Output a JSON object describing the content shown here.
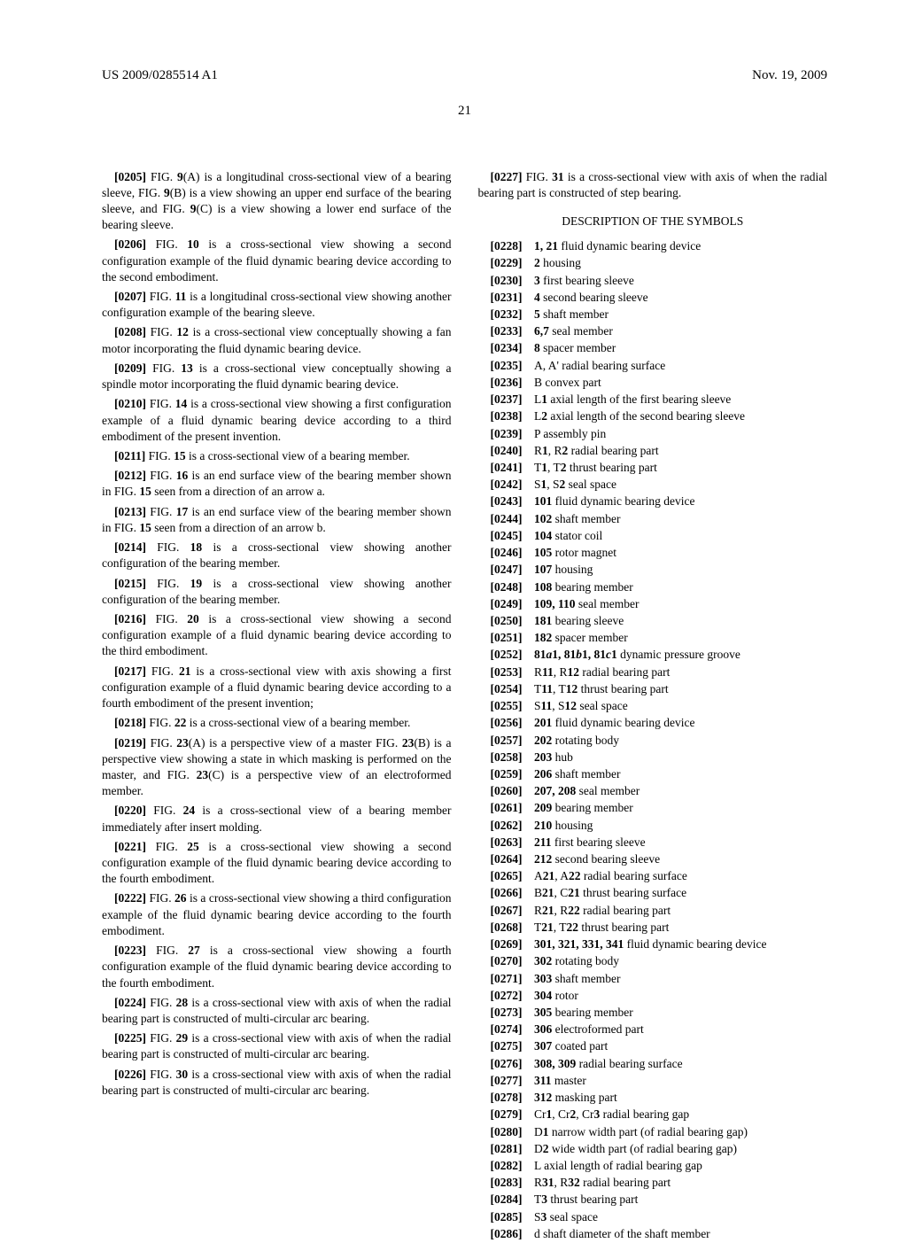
{
  "header": {
    "left": "US 2009/0285514 A1",
    "right": "Nov. 19, 2009",
    "page": "21"
  },
  "left_paras": [
    {
      "t": "[0205]   FIG. 9(A) is a longitudinal cross-sectional view of a bearing sleeve, FIG. 9(B) is a view showing an upper end surface of the bearing sleeve, and FIG. 9(C) is a view showing a lower end surface of the bearing sleeve."
    },
    {
      "t": "[0206]   FIG. 10 is a cross-sectional view showing a second configuration example of the fluid dynamic bearing device according to the second embodiment."
    },
    {
      "t": "[0207]   FIG. 11 is a longitudinal cross-sectional view showing another configuration example of the bearing sleeve."
    },
    {
      "t": "[0208]   FIG. 12 is a cross-sectional view conceptually showing a fan motor incorporating the fluid dynamic bearing device."
    },
    {
      "t": "[0209]   FIG. 13 is a cross-sectional view conceptually showing a spindle motor incorporating the fluid dynamic bearing device."
    },
    {
      "t": "[0210]   FIG. 14 is a cross-sectional view showing a first configuration example of a fluid dynamic bearing device according to a third embodiment of the present invention."
    },
    {
      "t": "[0211]   FIG. 15 is a cross-sectional view of a bearing member."
    },
    {
      "t": "[0212]   FIG. 16 is an end surface view of the bearing member shown in FIG. 15 seen from a direction of an arrow a."
    },
    {
      "t": "[0213]   FIG. 17 is an end surface view of the bearing member shown in FIG. 15 seen from a direction of an arrow b."
    },
    {
      "t": "[0214]   FIG. 18 is a cross-sectional view showing another configuration of the bearing member."
    },
    {
      "t": "[0215]   FIG. 19 is a cross-sectional view showing another configuration of the bearing member."
    },
    {
      "t": "[0216]   FIG. 20 is a cross-sectional view showing a second configuration example of a fluid dynamic bearing device according to the third embodiment."
    },
    {
      "t": "[0217]   FIG. 21 is a cross-sectional view with axis showing a first configuration example of a fluid dynamic bearing device according to a fourth embodiment of the present invention;"
    },
    {
      "t": "[0218]   FIG. 22 is a cross-sectional view of a bearing member."
    },
    {
      "t": "[0219]   FIG. 23(A) is a perspective view of a master FIG. 23(B) is a perspective view showing a state in which masking is performed on the master, and FIG. 23(C) is a perspective view of an electroformed member."
    },
    {
      "t": "[0220]   FIG. 24 is a cross-sectional view of a bearing member immediately after insert molding."
    },
    {
      "t": "[0221]   FIG. 25 is a cross-sectional view showing a second configuration example of the fluid dynamic bearing device according to the fourth embodiment."
    },
    {
      "t": "[0222]   FIG. 26 is a cross-sectional view showing a third configuration example of the fluid dynamic bearing device according to the fourth embodiment."
    },
    {
      "t": "[0223]   FIG. 27 is a cross-sectional view showing a fourth configuration example of the fluid dynamic bearing device according to the fourth embodiment."
    },
    {
      "t": "[0224]   FIG. 28 is a cross-sectional view with axis of when the radial bearing part is constructed of multi-circular arc bearing."
    },
    {
      "t": "[0225]   FIG. 29 is a cross-sectional view with axis of when the radial bearing part is constructed of multi-circular arc bearing."
    },
    {
      "t": "[0226]   FIG. 30 is a cross-sectional view with axis of when the radial bearing part is constructed of multi-circular arc bearing."
    }
  ],
  "right_intro": {
    "t": "[0227]   FIG. 31 is a cross-sectional view with axis of when the radial bearing part is constructed of step bearing."
  },
  "section_title": "DESCRIPTION OF THE SYMBOLS",
  "symbols": [
    {
      "n": "[0228]",
      "r": "1, 21",
      "d": " fluid dynamic bearing device"
    },
    {
      "n": "[0229]",
      "r": "2",
      "d": " housing"
    },
    {
      "n": "[0230]",
      "r": "3",
      "d": " first bearing sleeve"
    },
    {
      "n": "[0231]",
      "r": "4",
      "d": " second bearing sleeve"
    },
    {
      "n": "[0232]",
      "r": "5",
      "d": " shaft member"
    },
    {
      "n": "[0233]",
      "r": "6,7",
      "d": " seal member"
    },
    {
      "n": "[0234]",
      "r": "8",
      "d": " spacer member"
    },
    {
      "n": "[0235]",
      "r": "",
      "d": "A, A' radial bearing surface"
    },
    {
      "n": "[0236]",
      "r": "",
      "d": "B convex part"
    },
    {
      "n": "[0237]",
      "r": "",
      "d": "L1 axial length of the first bearing sleeve",
      "bold": "1"
    },
    {
      "n": "[0238]",
      "r": "",
      "d": "L2 axial length of the second bearing sleeve",
      "bold": "2"
    },
    {
      "n": "[0239]",
      "r": "",
      "d": "P assembly pin"
    },
    {
      "n": "[0240]",
      "r": "",
      "d": "R1, R2 radial bearing part",
      "bold": "1,2"
    },
    {
      "n": "[0241]",
      "r": "",
      "d": "T1, T2 thrust bearing part",
      "bold": "1,2"
    },
    {
      "n": "[0242]",
      "r": "",
      "d": "S1, S2 seal space",
      "bold": "1,2"
    },
    {
      "n": "[0243]",
      "r": "101",
      "d": " fluid dynamic bearing device"
    },
    {
      "n": "[0244]",
      "r": "102",
      "d": " shaft member"
    },
    {
      "n": "[0245]",
      "r": "104",
      "d": " stator coil"
    },
    {
      "n": "[0246]",
      "r": "105",
      "d": " rotor magnet"
    },
    {
      "n": "[0247]",
      "r": "107",
      "d": " housing"
    },
    {
      "n": "[0248]",
      "r": "108",
      "d": " bearing member"
    },
    {
      "n": "[0249]",
      "r": "109, 110",
      "d": " seal member"
    },
    {
      "n": "[0250]",
      "r": "181",
      "d": " bearing sleeve"
    },
    {
      "n": "[0251]",
      "r": "182",
      "d": " spacer member"
    },
    {
      "n": "[0252]",
      "r": "81a1, 81b1, 81c1",
      "d": " dynamic pressure groove",
      "italic": true
    },
    {
      "n": "[0253]",
      "r": "",
      "d": "R11, R12 radial bearing part",
      "bold": "11,12"
    },
    {
      "n": "[0254]",
      "r": "",
      "d": "T11, T12 thrust bearing part",
      "bold": "11,12"
    },
    {
      "n": "[0255]",
      "r": "",
      "d": "S11, S12 seal space",
      "bold": "11,12"
    },
    {
      "n": "[0256]",
      "r": "201",
      "d": " fluid dynamic bearing device"
    },
    {
      "n": "[0257]",
      "r": "202",
      "d": " rotating body"
    },
    {
      "n": "[0258]",
      "r": "203",
      "d": " hub"
    },
    {
      "n": "[0259]",
      "r": "206",
      "d": " shaft member"
    },
    {
      "n": "[0260]",
      "r": "207, 208",
      "d": " seal member"
    },
    {
      "n": "[0261]",
      "r": "209",
      "d": " bearing member"
    },
    {
      "n": "[0262]",
      "r": "210",
      "d": " housing"
    },
    {
      "n": "[0263]",
      "r": "211",
      "d": " first bearing sleeve"
    },
    {
      "n": "[0264]",
      "r": "212",
      "d": " second bearing sleeve"
    },
    {
      "n": "[0265]",
      "r": "",
      "d": "A21, A22 radial bearing surface",
      "bold": "21,22"
    },
    {
      "n": "[0266]",
      "r": "",
      "d": "B21, C21 thrust bearing surface",
      "bold": "21,21"
    },
    {
      "n": "[0267]",
      "r": "",
      "d": "R21, R22 radial bearing part",
      "bold": "21,22"
    },
    {
      "n": "[0268]",
      "r": "",
      "d": "T21, T22 thrust bearing part",
      "bold": "21,22"
    },
    {
      "n": "[0269]",
      "r": "301, 321, 331, 341",
      "d": " fluid dynamic bearing device"
    },
    {
      "n": "[0270]",
      "r": "302",
      "d": " rotating body"
    },
    {
      "n": "[0271]",
      "r": "303",
      "d": " shaft member"
    },
    {
      "n": "[0272]",
      "r": "304",
      "d": " rotor"
    },
    {
      "n": "[0273]",
      "r": "305",
      "d": " bearing member"
    },
    {
      "n": "[0274]",
      "r": "306",
      "d": " electroformed part"
    },
    {
      "n": "[0275]",
      "r": "307",
      "d": " coated part"
    },
    {
      "n": "[0276]",
      "r": "308, 309",
      "d": " radial bearing surface"
    },
    {
      "n": "[0277]",
      "r": "311",
      "d": " master"
    },
    {
      "n": "[0278]",
      "r": "312",
      "d": " masking part"
    },
    {
      "n": "[0279]",
      "r": "",
      "d": "Cr1, Cr2, Cr3 radial bearing gap",
      "bold": "1,2,3"
    },
    {
      "n": "[0280]",
      "r": "",
      "d": "D1 narrow width part (of radial bearing gap)",
      "bold": "1"
    },
    {
      "n": "[0281]",
      "r": "",
      "d": "D2 wide width part (of radial bearing gap)",
      "bold": "2"
    },
    {
      "n": "[0282]",
      "r": "",
      "d": "L axial length of radial bearing gap"
    },
    {
      "n": "[0283]",
      "r": "",
      "d": "R31, R32 radial bearing part",
      "bold": "31,32"
    },
    {
      "n": "[0284]",
      "r": "",
      "d": "T3 thrust bearing part",
      "bold": "3"
    },
    {
      "n": "[0285]",
      "r": "",
      "d": "S3 seal space",
      "bold": "3"
    },
    {
      "n": "[0286]",
      "r": "",
      "d": "d shaft diameter of the shaft member"
    }
  ]
}
